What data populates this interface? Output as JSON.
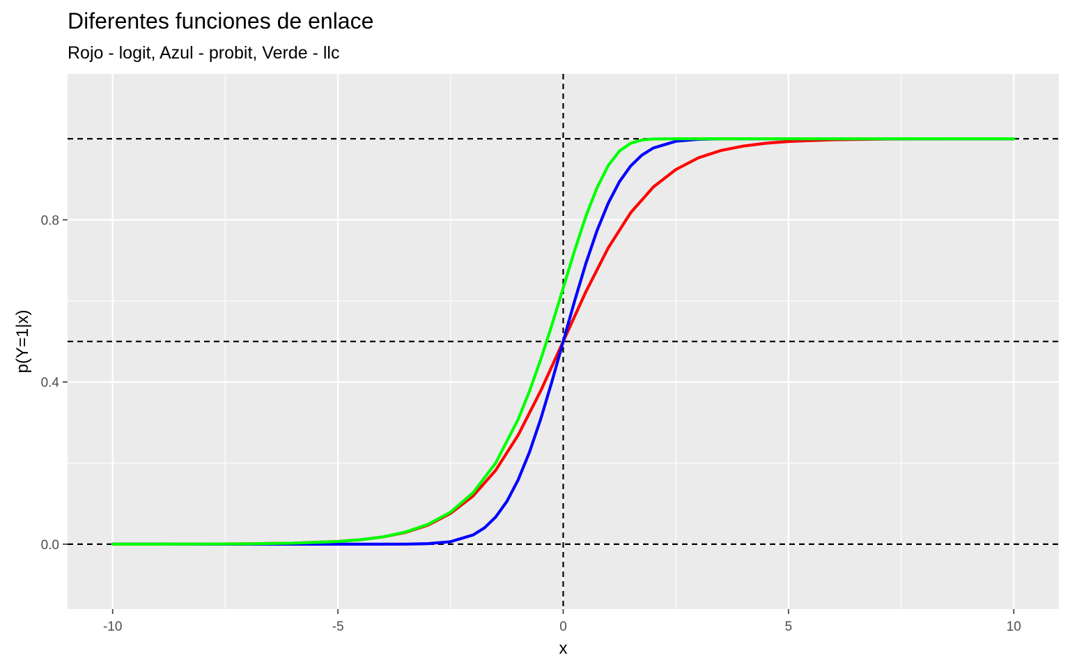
{
  "chart_data": {
    "type": "line",
    "title": "Diferentes funciones de enlace",
    "subtitle": "Rojo - logit, Azul - probit, Verde - llc",
    "xlabel": "x",
    "ylabel": "p(Y=1|x)",
    "xlim": [
      -11,
      11
    ],
    "ylim": [
      -0.16,
      1.16
    ],
    "x_ticks": [
      -10,
      -5,
      0,
      5,
      10
    ],
    "x_tick_labels": [
      "-10",
      "-5",
      "0",
      "5",
      "10"
    ],
    "y_ticks": [
      0.0,
      0.4,
      0.8
    ],
    "y_tick_labels": [
      "0.0",
      "0.4",
      "0.8"
    ],
    "grid": true,
    "background": "#ebebeb",
    "reference_lines": {
      "horizontal": [
        0,
        0.5,
        1
      ],
      "vertical": [
        0
      ],
      "style": "dashed",
      "color": "#000000"
    },
    "series": [
      {
        "color": "#ff0000",
        "x": [
          -10,
          -9,
          -8,
          -7,
          -6,
          -5,
          -4.5,
          -4,
          -3.5,
          -3,
          -2.5,
          -2,
          -1.5,
          -1,
          -0.5,
          0,
          0.5,
          1,
          1.5,
          2,
          2.5,
          3,
          3.5,
          4,
          4.5,
          5,
          6,
          7,
          8,
          9,
          10
        ],
        "y": [
          5e-05,
          0.00012,
          0.00034,
          0.00091,
          0.0025,
          0.0067,
          0.011,
          0.018,
          0.029,
          0.047,
          0.076,
          0.119,
          0.182,
          0.269,
          0.378,
          0.5,
          0.622,
          0.731,
          0.818,
          0.881,
          0.924,
          0.953,
          0.971,
          0.982,
          0.989,
          0.9933,
          0.9975,
          0.9991,
          0.9997,
          0.9999,
          1.0
        ]
      },
      {
        "color": "#0000ff",
        "x": [
          -10,
          -9,
          -8,
          -7,
          -6,
          -5,
          -4,
          -3.5,
          -3,
          -2.5,
          -2,
          -1.75,
          -1.5,
          -1.25,
          -1,
          -0.75,
          -0.5,
          -0.25,
          0,
          0.25,
          0.5,
          0.75,
          1,
          1.25,
          1.5,
          1.75,
          2,
          2.5,
          3,
          3.5,
          4,
          5,
          6,
          7,
          8,
          9,
          10
        ],
        "y": [
          0,
          0,
          0,
          0,
          0,
          0,
          3e-05,
          0.0002,
          0.0013,
          0.0062,
          0.0228,
          0.0401,
          0.0668,
          0.1056,
          0.1587,
          0.2266,
          0.3085,
          0.4013,
          0.5,
          0.5987,
          0.6915,
          0.7734,
          0.8413,
          0.8944,
          0.9332,
          0.9599,
          0.9772,
          0.9938,
          0.9987,
          0.9998,
          1.0,
          1.0,
          1.0,
          1.0,
          1.0,
          1.0,
          1.0
        ]
      },
      {
        "color": "#00ff00",
        "x": [
          -10,
          -9,
          -8,
          -7,
          -6,
          -5,
          -4.5,
          -4,
          -3.5,
          -3,
          -2.5,
          -2,
          -1.5,
          -1,
          -0.75,
          -0.5,
          -0.25,
          0,
          0.25,
          0.5,
          0.75,
          1,
          1.25,
          1.5,
          1.75,
          2,
          2.5,
          3,
          4,
          5,
          6,
          7,
          8,
          9,
          10
        ],
        "y": [
          5e-05,
          0.00012,
          0.00034,
          0.00091,
          0.0025,
          0.0067,
          0.011,
          0.018,
          0.03,
          0.049,
          0.079,
          0.127,
          0.2,
          0.308,
          0.377,
          0.455,
          0.541,
          0.632,
          0.723,
          0.808,
          0.879,
          0.934,
          0.97,
          0.989,
          0.997,
          0.9994,
          1.0,
          1.0,
          1.0,
          1.0,
          1.0,
          1.0,
          1.0,
          1.0,
          1.0
        ]
      }
    ]
  }
}
